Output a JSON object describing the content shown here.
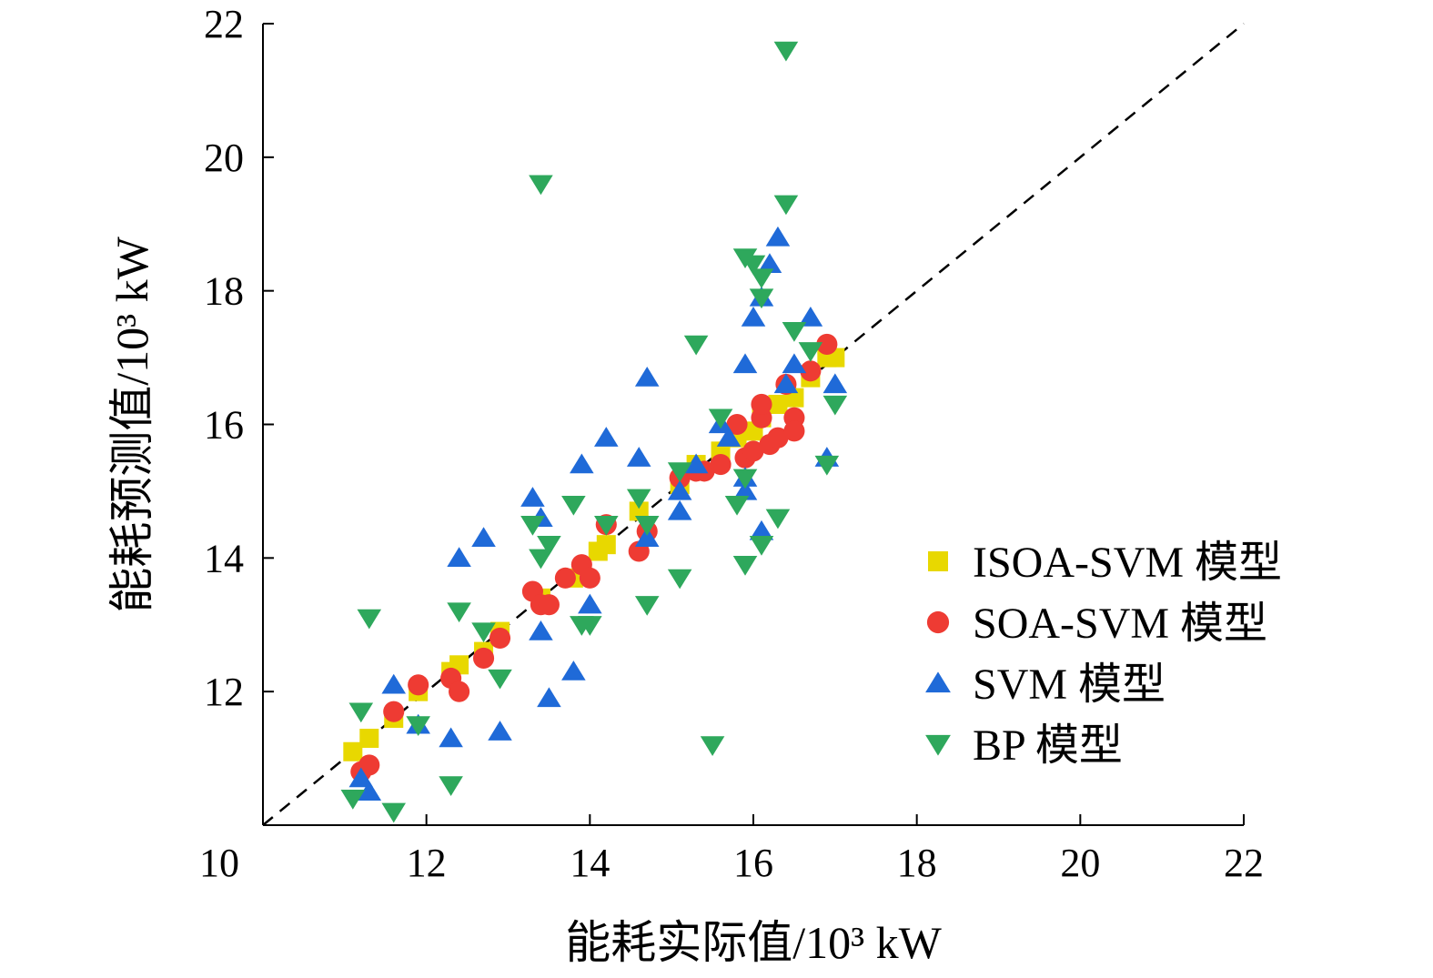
{
  "chart_data": {
    "type": "scatter",
    "xlabel": "能耗实际值/10³ kW",
    "ylabel": "能耗预测值/10³ kW",
    "xlim": [
      10,
      22
    ],
    "ylim": [
      10,
      22
    ],
    "xticks": [
      "10",
      "12",
      "14",
      "16",
      "18",
      "20",
      "22"
    ],
    "yticks": [
      "12",
      "14",
      "16",
      "18",
      "20",
      "22"
    ],
    "grid": false,
    "legend_position": "right",
    "reference_line": "y = x (dashed)",
    "series": [
      {
        "name": "ISOA-SVM 模型",
        "marker": "square",
        "color": "#e8d800",
        "points": [
          [
            11.1,
            11.1
          ],
          [
            11.3,
            11.3
          ],
          [
            11.6,
            11.6
          ],
          [
            11.9,
            12.0
          ],
          [
            12.3,
            12.3
          ],
          [
            12.4,
            12.4
          ],
          [
            12.7,
            12.6
          ],
          [
            12.9,
            12.9
          ],
          [
            13.4,
            13.4
          ],
          [
            13.8,
            13.7
          ],
          [
            14.1,
            14.1
          ],
          [
            14.2,
            14.2
          ],
          [
            14.6,
            14.7
          ],
          [
            15.1,
            15.1
          ],
          [
            15.3,
            15.4
          ],
          [
            15.6,
            15.6
          ],
          [
            15.8,
            15.8
          ],
          [
            16.0,
            15.9
          ],
          [
            16.1,
            16.1
          ],
          [
            16.3,
            16.3
          ],
          [
            16.5,
            16.4
          ],
          [
            16.7,
            16.7
          ],
          [
            16.9,
            17.0
          ],
          [
            17.0,
            17.0
          ]
        ]
      },
      {
        "name": "SOA-SVM 模型",
        "marker": "circle",
        "color": "#ee3b33",
        "points": [
          [
            11.2,
            10.8
          ],
          [
            11.3,
            10.9
          ],
          [
            11.6,
            11.7
          ],
          [
            11.9,
            12.1
          ],
          [
            12.3,
            12.2
          ],
          [
            12.4,
            12.0
          ],
          [
            12.7,
            12.5
          ],
          [
            12.9,
            12.8
          ],
          [
            13.3,
            13.5
          ],
          [
            13.4,
            13.3
          ],
          [
            13.5,
            13.3
          ],
          [
            13.7,
            13.7
          ],
          [
            13.9,
            13.9
          ],
          [
            14.0,
            13.7
          ],
          [
            14.2,
            14.5
          ],
          [
            14.6,
            14.1
          ],
          [
            14.7,
            14.4
          ],
          [
            15.1,
            15.2
          ],
          [
            15.3,
            15.3
          ],
          [
            15.4,
            15.3
          ],
          [
            15.6,
            15.4
          ],
          [
            15.8,
            16.0
          ],
          [
            15.9,
            15.5
          ],
          [
            16.0,
            15.6
          ],
          [
            16.1,
            16.1
          ],
          [
            16.1,
            16.3
          ],
          [
            16.2,
            15.7
          ],
          [
            16.3,
            15.8
          ],
          [
            16.4,
            16.6
          ],
          [
            16.5,
            16.1
          ],
          [
            16.5,
            15.9
          ],
          [
            16.7,
            16.8
          ],
          [
            16.9,
            17.2
          ]
        ]
      },
      {
        "name": "SVM 模型",
        "marker": "triangle-up",
        "color": "#1f6ad8",
        "points": [
          [
            11.2,
            10.7
          ],
          [
            11.3,
            10.5
          ],
          [
            11.6,
            12.1
          ],
          [
            11.9,
            11.5
          ],
          [
            12.3,
            11.3
          ],
          [
            12.4,
            14.0
          ],
          [
            12.7,
            14.3
          ],
          [
            12.9,
            11.4
          ],
          [
            13.3,
            14.9
          ],
          [
            13.4,
            14.6
          ],
          [
            13.4,
            12.9
          ],
          [
            13.5,
            11.9
          ],
          [
            13.8,
            12.3
          ],
          [
            13.9,
            15.4
          ],
          [
            14.0,
            13.3
          ],
          [
            14.2,
            15.8
          ],
          [
            14.6,
            15.5
          ],
          [
            14.7,
            16.7
          ],
          [
            14.7,
            14.3
          ],
          [
            15.1,
            15.0
          ],
          [
            15.1,
            14.7
          ],
          [
            15.3,
            15.4
          ],
          [
            15.6,
            16.0
          ],
          [
            15.7,
            15.8
          ],
          [
            15.9,
            15.2
          ],
          [
            15.9,
            16.9
          ],
          [
            15.9,
            15.0
          ],
          [
            16.0,
            17.6
          ],
          [
            16.1,
            14.4
          ],
          [
            16.1,
            17.9
          ],
          [
            16.2,
            18.4
          ],
          [
            16.3,
            18.8
          ],
          [
            16.4,
            16.6
          ],
          [
            16.5,
            16.9
          ],
          [
            16.7,
            17.6
          ],
          [
            16.9,
            15.5
          ],
          [
            17.0,
            16.6
          ]
        ]
      },
      {
        "name": "BP 模型",
        "marker": "triangle-down",
        "color": "#2ea85c",
        "points": [
          [
            11.1,
            10.4
          ],
          [
            11.2,
            11.7
          ],
          [
            11.3,
            13.1
          ],
          [
            11.6,
            10.2
          ],
          [
            11.9,
            11.5
          ],
          [
            12.3,
            10.6
          ],
          [
            12.4,
            13.2
          ],
          [
            12.7,
            12.9
          ],
          [
            12.9,
            12.2
          ],
          [
            13.3,
            14.5
          ],
          [
            13.4,
            19.6
          ],
          [
            13.4,
            14.0
          ],
          [
            13.5,
            14.2
          ],
          [
            13.8,
            14.8
          ],
          [
            13.9,
            13.0
          ],
          [
            14.0,
            13.0
          ],
          [
            14.2,
            14.5
          ],
          [
            14.6,
            14.9
          ],
          [
            14.7,
            14.5
          ],
          [
            14.7,
            13.3
          ],
          [
            15.1,
            15.3
          ],
          [
            15.1,
            13.7
          ],
          [
            15.3,
            17.2
          ],
          [
            15.5,
            11.2
          ],
          [
            15.6,
            16.1
          ],
          [
            15.8,
            14.8
          ],
          [
            15.9,
            18.5
          ],
          [
            15.9,
            13.9
          ],
          [
            15.9,
            15.2
          ],
          [
            16.0,
            18.4
          ],
          [
            16.1,
            17.9
          ],
          [
            16.1,
            18.2
          ],
          [
            16.1,
            14.2
          ],
          [
            16.3,
            14.6
          ],
          [
            16.4,
            21.6
          ],
          [
            16.4,
            19.3
          ],
          [
            16.5,
            17.4
          ],
          [
            16.7,
            17.1
          ],
          [
            16.9,
            15.4
          ],
          [
            17.0,
            16.3
          ]
        ]
      }
    ]
  }
}
